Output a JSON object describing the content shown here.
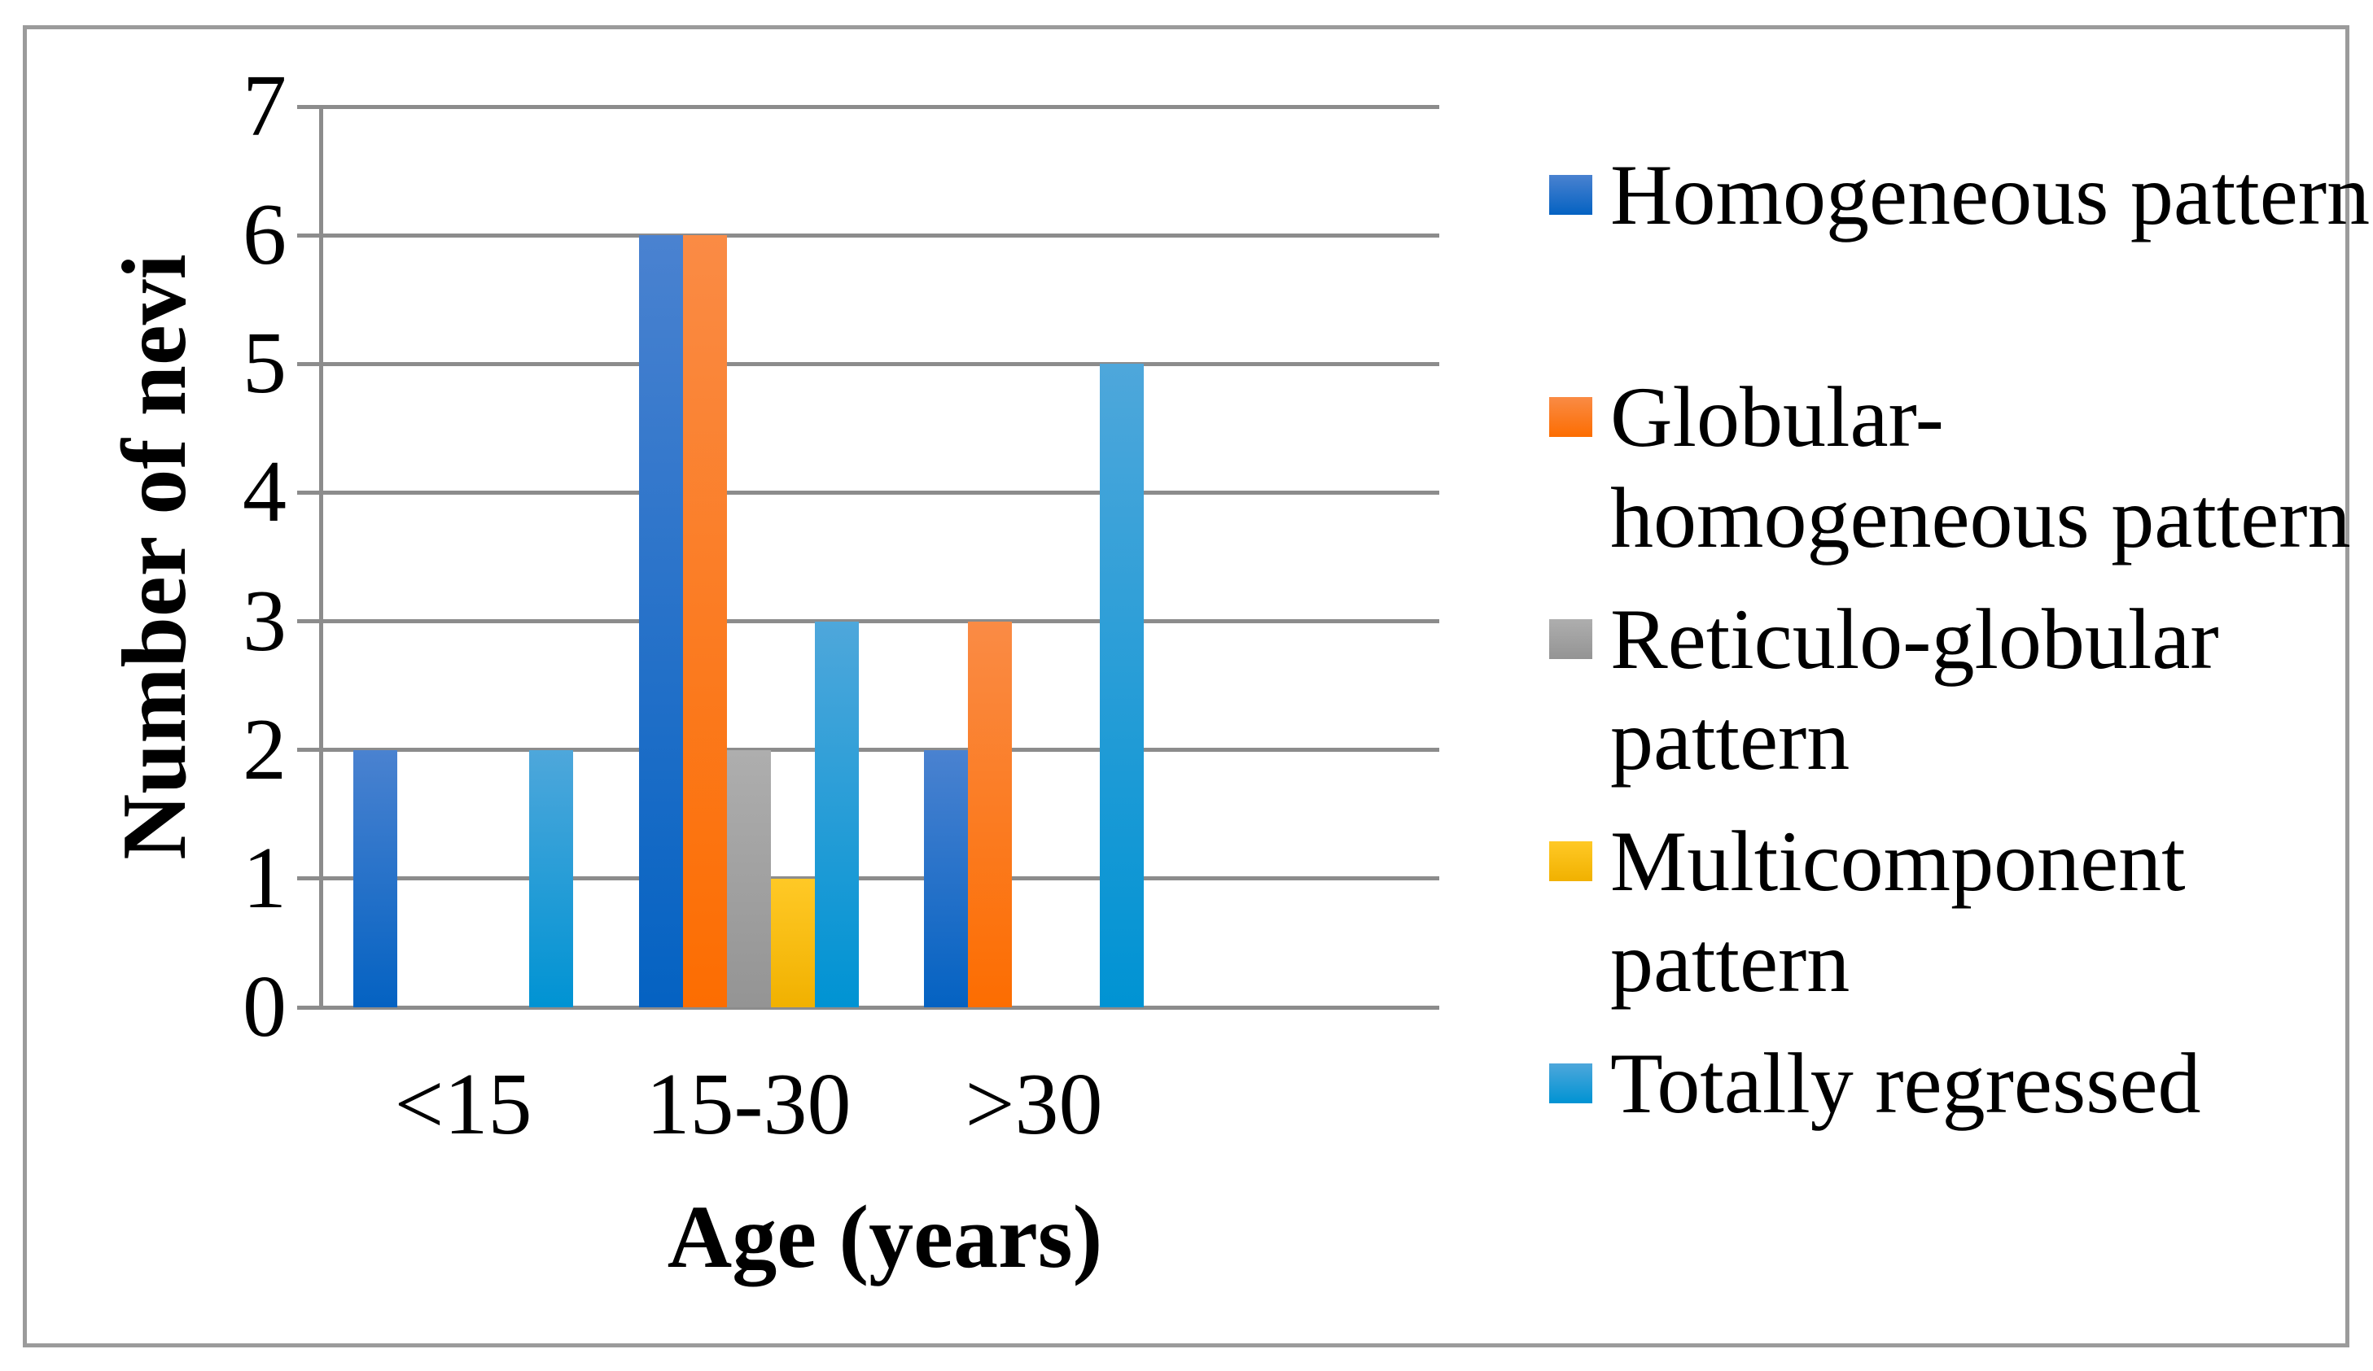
{
  "chart_data": {
    "type": "bar",
    "title": "",
    "categories": [
      "<15",
      "15-30",
      ">30"
    ],
    "series": [
      {
        "name": "Homogeneous pattern",
        "values": [
          2,
          6,
          2
        ]
      },
      {
        "name": "Globular-homogeneous pattern",
        "values": [
          0,
          6,
          3
        ]
      },
      {
        "name": "Reticulo-globular pattern",
        "values": [
          0,
          2,
          0
        ]
      },
      {
        "name": "Multicomponent pattern",
        "values": [
          0,
          1,
          0
        ]
      },
      {
        "name": "Totally regressed",
        "values": [
          2,
          3,
          5
        ]
      }
    ],
    "xlabel": "Age (years)",
    "ylabel": "Number of nevi",
    "ylim": [
      0,
      7
    ],
    "ytick_labels": [
      "0",
      "1",
      "2",
      "3",
      "4",
      "5",
      "6",
      "7"
    ],
    "grid": true,
    "legend_position": "right"
  },
  "legend": {
    "entries": [
      {
        "lines": [
          "Homogeneous pattern"
        ]
      },
      {
        "lines": [
          "Globular-",
          "homogeneous pattern"
        ]
      },
      {
        "lines": [
          "Reticulo-globular",
          "pattern"
        ]
      },
      {
        "lines": [
          "Multicomponent",
          "pattern"
        ]
      },
      {
        "lines": [
          "Totally regressed"
        ]
      }
    ]
  },
  "colors": {
    "series_gradients": [
      {
        "top": "#4a82d0",
        "bottom": "#0462c2"
      },
      {
        "top": "#fa8b45",
        "bottom": "#fc6d01"
      },
      {
        "top": "#aeaeae",
        "bottom": "#949494"
      },
      {
        "top": "#ffc926",
        "bottom": "#f1b100"
      },
      {
        "top": "#4ea7db",
        "bottom": "#0093d3"
      }
    ],
    "gridline": "#8c8c8c",
    "axis": "#8c8c8c",
    "border": "#9b9b9b",
    "text": "#000000"
  }
}
